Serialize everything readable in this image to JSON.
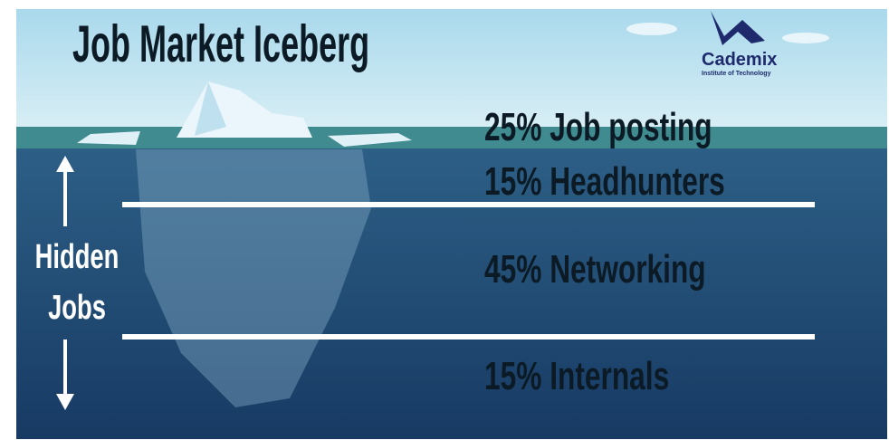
{
  "title": "Job Market Iceberg",
  "logo": {
    "name": "Cademix",
    "subtitle": "Institute of Technology"
  },
  "side_label": [
    "Hidden",
    "Jobs"
  ],
  "levels": [
    "25% Job posting",
    "15% Headhunters",
    "45% Networking",
    "15% Internals"
  ]
}
